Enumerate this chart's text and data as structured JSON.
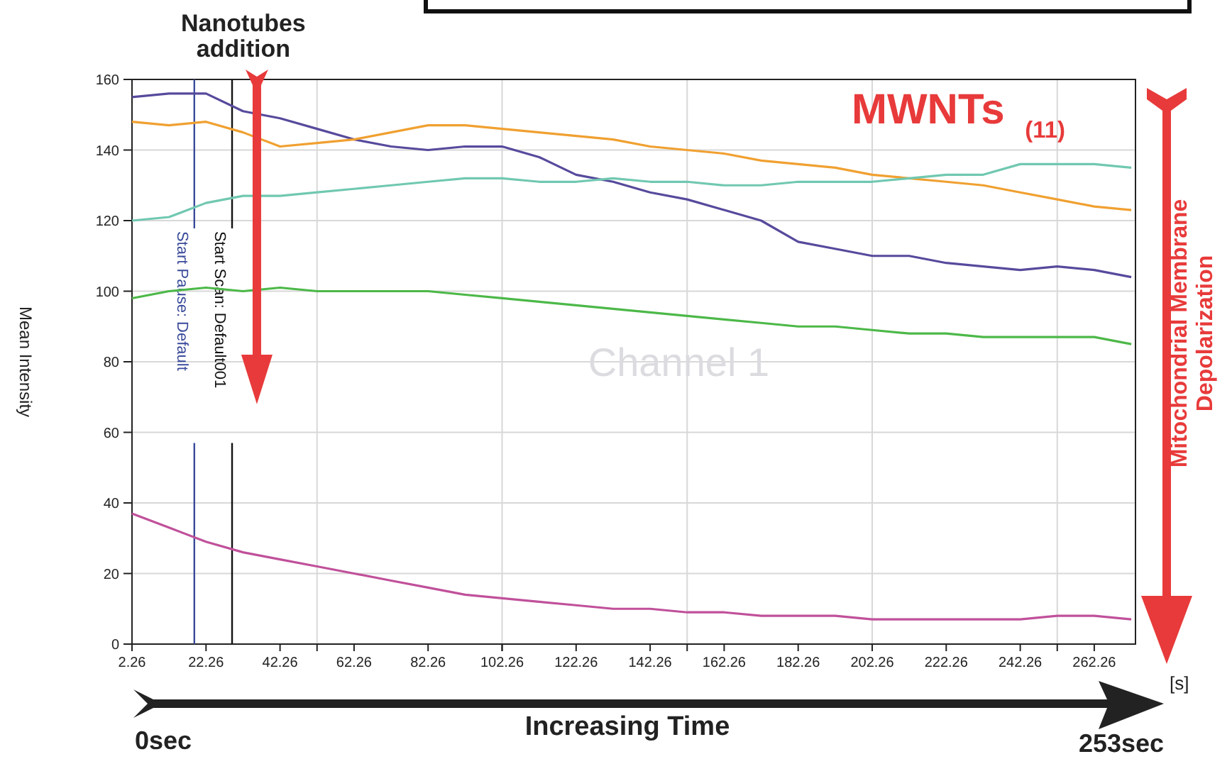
{
  "chart_data": {
    "type": "line",
    "ylabel": "Mean Intensity",
    "xlabel": "[s]",
    "annotations": [
      "Nanotubes addition",
      "MWNTs $_{(11)}$",
      "Channel 1",
      "Mitochondrial Membrane Depolarization",
      "0sec",
      "Increasing Time",
      "253sec"
    ],
    "x": [
      2.26,
      12.26,
      22.26,
      32.26,
      42.26,
      52.26,
      62.26,
      72.26,
      82.26,
      92.26,
      102.26,
      112.26,
      122.26,
      132.26,
      142.26,
      152.26,
      162.26,
      172.26,
      182.26,
      192.26,
      202.26,
      212.26,
      222.26,
      232.26,
      242.26,
      252.26,
      262.26,
      272.26
    ],
    "series": [
      {
        "color": "#564a9c",
        "values": [
          155,
          156,
          156,
          151,
          149,
          146,
          143,
          141,
          140,
          141,
          141,
          138,
          133,
          131,
          128,
          126,
          123,
          120,
          114,
          112,
          110,
          110,
          108,
          107,
          106,
          107,
          106,
          104
        ]
      },
      {
        "color": "#f0a030",
        "values": [
          148,
          147,
          148,
          145,
          141,
          142,
          143,
          145,
          147,
          147,
          146,
          145,
          144,
          143,
          141,
          140,
          139,
          137,
          136,
          135,
          133,
          132,
          131,
          130,
          128,
          126,
          124,
          123
        ]
      },
      {
        "color": "#70c8b0",
        "values": [
          120,
          121,
          125,
          127,
          127,
          128,
          129,
          130,
          131,
          132,
          132,
          131,
          131,
          132,
          131,
          131,
          130,
          130,
          131,
          131,
          131,
          132,
          133,
          133,
          136,
          136,
          136,
          135
        ]
      },
      {
        "color": "#4cb848",
        "values": [
          98,
          100,
          101,
          100,
          101,
          100,
          100,
          100,
          100,
          99,
          98,
          97,
          96,
          95,
          94,
          93,
          92,
          91,
          90,
          90,
          89,
          88,
          88,
          87,
          87,
          87,
          87,
          85
        ]
      },
      {
        "color": "#c0509a",
        "values": [
          37,
          33,
          29,
          26,
          24,
          22,
          20,
          18,
          16,
          14,
          13,
          12,
          11,
          10,
          10,
          9,
          9,
          8,
          8,
          8,
          7,
          7,
          7,
          7,
          7,
          8,
          8,
          7
        ]
      }
    ],
    "xlim": [
      2.26,
      273.4
    ],
    "xticks": [
      2.26,
      22.26,
      42.26,
      62.26,
      82.26,
      102.26,
      122.26,
      142.26,
      162.26,
      182.26,
      202.26,
      222.26,
      242.26,
      262.26,
      {
        "value": 52.26,
        "label": null
      },
      {
        "value": 102.26,
        "label": null
      },
      {
        "value": 152.26,
        "label": null
      },
      {
        "value": 202.26,
        "label": null
      },
      {
        "value": 252.26,
        "label": null
      }
    ],
    "ylim": [
      0,
      160
    ],
    "yticks": [
      0,
      20,
      40,
      60,
      80,
      100,
      120,
      140,
      160
    ],
    "grid": true,
    "line_style": "solid",
    "marker": "none",
    "ref_lines": [
      {
        "axis": "x",
        "value": 19.1,
        "label": "Start Pause: Default",
        "color": "#3a4a9a"
      },
      {
        "axis": "x",
        "value": 29.3,
        "label": "Start Scan: Default001",
        "color": "#111111"
      }
    ]
  }
}
